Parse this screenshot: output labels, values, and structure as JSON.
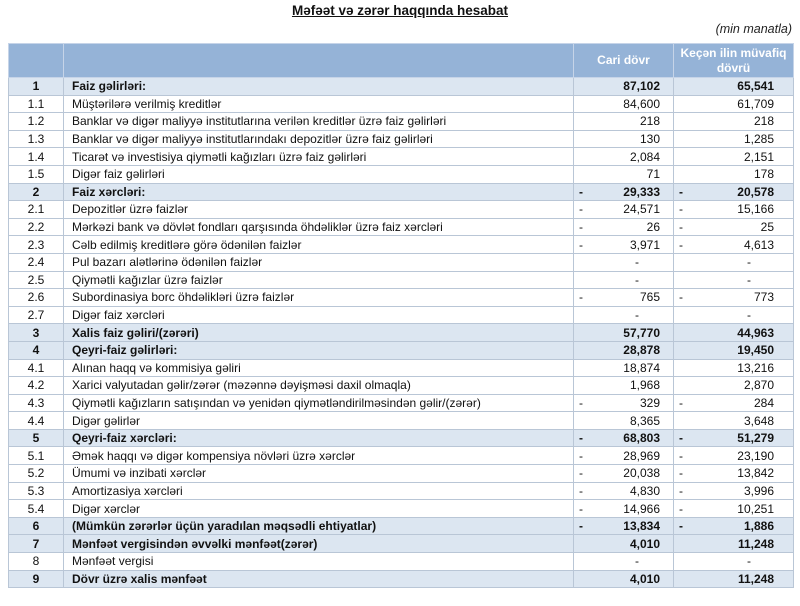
{
  "title": "Məfəət və zərər haqqında hesabat",
  "unit_note": "(min manatla)",
  "columns": {
    "current": "Cari dövr",
    "previous": "Keçən ilin müvafiq dövrü"
  },
  "colors": {
    "header_bg": "#95B3D7",
    "band_bg": "#DCE6F1",
    "header_text": "#FFFFFF",
    "grid_border": "#B9C6D6",
    "outer_border": "#95B3D7"
  },
  "rows": [
    {
      "no": "1",
      "label": "Faiz gəlirləri:",
      "bold": true,
      "cur_neg": "",
      "cur": "87,102",
      "prev_neg": "",
      "prev": "65,541"
    },
    {
      "no": "1.1",
      "label": "Müştərilərə verilmiş kreditlər",
      "bold": false,
      "cur_neg": "",
      "cur": "84,600",
      "prev_neg": "",
      "prev": "61,709"
    },
    {
      "no": "1.2",
      "label": "Banklar və digər maliyyə institutlarına verilən kreditlər üzrə faiz gəlirləri",
      "bold": false,
      "cur_neg": "",
      "cur": "218",
      "prev_neg": "",
      "prev": "218"
    },
    {
      "no": "1.3",
      "label": "Banklar və digər maliyyə institutlarındakı depozitlər üzrə faiz gəlirləri",
      "bold": false,
      "cur_neg": "",
      "cur": "130",
      "prev_neg": "",
      "prev": "1,285"
    },
    {
      "no": "1.4",
      "label": "Ticarət və investisiya qiymətli kağızları üzrə faiz gəlirləri",
      "bold": false,
      "cur_neg": "",
      "cur": "2,084",
      "prev_neg": "",
      "prev": "2,151"
    },
    {
      "no": "1.5",
      "label": "Digər faiz gəlirləri",
      "bold": false,
      "cur_neg": "",
      "cur": "71",
      "prev_neg": "",
      "prev": "178"
    },
    {
      "no": "2",
      "label": "Faiz xərcləri:",
      "bold": true,
      "cur_neg": "-",
      "cur": "29,333",
      "prev_neg": "-",
      "prev": "20,578"
    },
    {
      "no": "2.1",
      "label": "Depozitlər üzrə faizlər",
      "bold": false,
      "cur_neg": "-",
      "cur": "24,571",
      "prev_neg": "-",
      "prev": "15,166"
    },
    {
      "no": "2.2",
      "label": "Mərkəzi bank və dövlət fondları qarşısında öhdəliklər üzrə faiz xərcləri",
      "bold": false,
      "cur_neg": "-",
      "cur": "26",
      "prev_neg": "-",
      "prev": "25"
    },
    {
      "no": "2.3",
      "label": "Cəlb edilmiş kreditlərə görə ödənilən faizlər",
      "bold": false,
      "cur_neg": "-",
      "cur": "3,971",
      "prev_neg": "-",
      "prev": "4,613"
    },
    {
      "no": "2.4",
      "label": "Pul bazarı alətlərinə ödənilən faizlər",
      "bold": false,
      "cur_neg": "",
      "cur": "-",
      "prev_neg": "",
      "prev": "-"
    },
    {
      "no": "2.5",
      "label": "Qiymətli kağızlar üzrə faizlər",
      "bold": false,
      "cur_neg": "",
      "cur": "-",
      "prev_neg": "",
      "prev": "-"
    },
    {
      "no": "2.6",
      "label": "Subordinasiya borc öhdəlikləri üzrə faizlər",
      "bold": false,
      "cur_neg": "-",
      "cur": "765",
      "prev_neg": "-",
      "prev": "773"
    },
    {
      "no": "2.7",
      "label": "Digər faiz xərcləri",
      "bold": false,
      "cur_neg": "",
      "cur": "-",
      "prev_neg": "",
      "prev": "-"
    },
    {
      "no": "3",
      "label": "Xalis faiz gəliri/(zərəri)",
      "bold": true,
      "cur_neg": "",
      "cur": "57,770",
      "prev_neg": "",
      "prev": "44,963"
    },
    {
      "no": "4",
      "label": "Qeyri-faiz gəlirləri:",
      "bold": true,
      "cur_neg": "",
      "cur": "28,878",
      "prev_neg": "",
      "prev": "19,450"
    },
    {
      "no": "4.1",
      "label": "Alınan haqq və kommisiya gəliri",
      "bold": false,
      "cur_neg": "",
      "cur": "18,874",
      "prev_neg": "",
      "prev": "13,216"
    },
    {
      "no": "4.2",
      "label": "Xarici valyutadan gəlir/zərər (məzənnə dəyişməsi daxil olmaqla)",
      "bold": false,
      "cur_neg": "",
      "cur": "1,968",
      "prev_neg": "",
      "prev": "2,870"
    },
    {
      "no": "4.3",
      "label": "Qiymətli kağızların satışından və yenidən qiymətləndirilməsindən gəlir/(zərər)",
      "bold": false,
      "cur_neg": "-",
      "cur": "329",
      "prev_neg": "-",
      "prev": "284"
    },
    {
      "no": "4.4",
      "label": "Digər gəlirlər",
      "bold": false,
      "cur_neg": "",
      "cur": "8,365",
      "prev_neg": "",
      "prev": "3,648"
    },
    {
      "no": "5",
      "label": "Qeyri-faiz xərcləri:",
      "bold": true,
      "cur_neg": "-",
      "cur": "68,803",
      "prev_neg": "-",
      "prev": "51,279"
    },
    {
      "no": "5.1",
      "label": "Əmək haqqı və digər kompensiya növləri üzrə xərclər",
      "bold": false,
      "cur_neg": "-",
      "cur": "28,969",
      "prev_neg": "-",
      "prev": "23,190"
    },
    {
      "no": "5.2",
      "label": "Ümumi və inzibati xərclər",
      "bold": false,
      "cur_neg": "-",
      "cur": "20,038",
      "prev_neg": "-",
      "prev": "13,842"
    },
    {
      "no": "5.3",
      "label": "Amortizasiya xərcləri",
      "bold": false,
      "cur_neg": "-",
      "cur": "4,830",
      "prev_neg": "-",
      "prev": "3,996"
    },
    {
      "no": "5.4",
      "label": "Digər xərclər",
      "bold": false,
      "cur_neg": "-",
      "cur": "14,966",
      "prev_neg": "-",
      "prev": "10,251"
    },
    {
      "no": "6",
      "label": "(Mümkün zərərlər üçün yaradılan məqsədli ehtiyatlar)",
      "bold": true,
      "cur_neg": "-",
      "cur": "13,834",
      "prev_neg": "-",
      "prev": "1,886"
    },
    {
      "no": "7",
      "label": "Mənfəət vergisindən əvvəlki mənfəət(zərər)",
      "bold": true,
      "cur_neg": "",
      "cur": "4,010",
      "prev_neg": "",
      "prev": "11,248"
    },
    {
      "no": "8",
      "label": "Mənfəət vergisi",
      "bold": false,
      "cur_neg": "",
      "cur": "-",
      "prev_neg": "",
      "prev": "-"
    },
    {
      "no": "9",
      "label": "Dövr üzrə xalis mənfəət",
      "bold": true,
      "cur_neg": "",
      "cur": "4,010",
      "prev_neg": "",
      "prev": "11,248"
    }
  ]
}
